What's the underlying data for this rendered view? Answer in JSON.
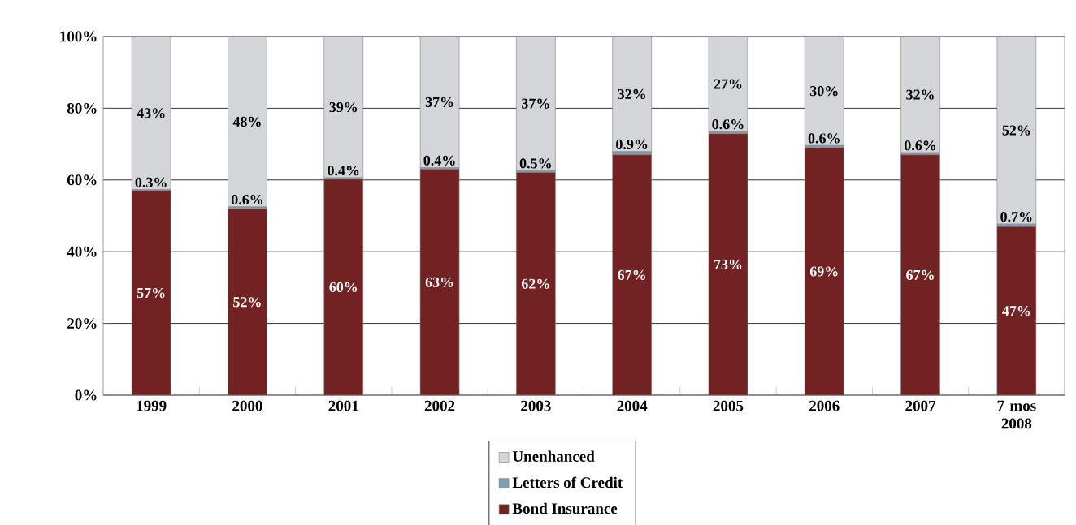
{
  "chart_data": {
    "type": "bar",
    "stacked": true,
    "categories": [
      "1999",
      "2000",
      "2001",
      "2002",
      "2003",
      "2004",
      "2005",
      "2006",
      "2007",
      "7 mos 2008"
    ],
    "series": [
      {
        "name": "Bond Insurance",
        "color": "#722222",
        "values": [
          57,
          51.9,
          60.2,
          63,
          62.1,
          67,
          72.9,
          69,
          67,
          47
        ],
        "value_labels": [
          "57%",
          "52%",
          "60%",
          "63%",
          "62%",
          "67%",
          "73%",
          "69%",
          "67%",
          "47%"
        ]
      },
      {
        "name": "Letters of Credit",
        "color": "#7f9fb0",
        "values": [
          0.3,
          0.6,
          0.4,
          0.4,
          0.5,
          0.9,
          0.6,
          0.6,
          0.6,
          0.7
        ],
        "value_labels": [
          "0.3%",
          "0.6%",
          "0.4%",
          "0.4%",
          "0.5%",
          "0.9%",
          "0.6%",
          "0.6%",
          "0.6%",
          "0.7%"
        ]
      },
      {
        "name": "Unenhanced",
        "color": "#d4d5d9",
        "values": [
          42.7,
          47.5,
          39.4,
          36.6,
          37.4,
          32.1,
          26.5,
          30.4,
          32.4,
          52.3
        ],
        "value_labels": [
          "43%",
          "48%",
          "39%",
          "37%",
          "37%",
          "32%",
          "27%",
          "30%",
          "32%",
          "52%"
        ]
      }
    ],
    "ylim": [
      0,
      100
    ],
    "yticks": [
      {
        "value": 0,
        "label": "0%"
      },
      {
        "value": 20,
        "label": "20%"
      },
      {
        "value": 40,
        "label": "40%"
      },
      {
        "value": 60,
        "label": "60%"
      },
      {
        "value": 80,
        "label": "80%"
      },
      {
        "value": 100,
        "label": "100%"
      }
    ],
    "grid": "y",
    "legend": "bottom"
  }
}
